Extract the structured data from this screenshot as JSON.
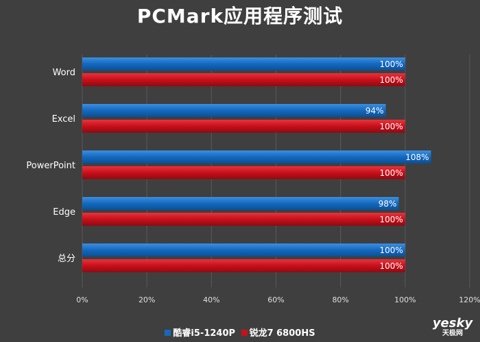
{
  "chart_data": {
    "type": "bar",
    "orientation": "horizontal",
    "title": "PCMark应用程序测试",
    "categories": [
      "Word",
      "Excel",
      "PowerPoint",
      "Edge",
      "总分"
    ],
    "series": [
      {
        "name": "酷睿i5-1240P",
        "values": [
          100,
          94,
          108,
          98,
          100
        ],
        "color": "#1469be"
      },
      {
        "name": "锐龙7 6800HS",
        "values": [
          100,
          100,
          100,
          100,
          100
        ],
        "color": "#c8101a"
      }
    ],
    "x_ticks": [
      "0%",
      "20%",
      "40%",
      "60%",
      "80%",
      "100%",
      "120%"
    ],
    "xlim": [
      0,
      120
    ],
    "value_suffix": "%",
    "grid": true,
    "legend_position": "bottom"
  },
  "watermark": {
    "main": "yesky",
    "sub": "天极网"
  }
}
